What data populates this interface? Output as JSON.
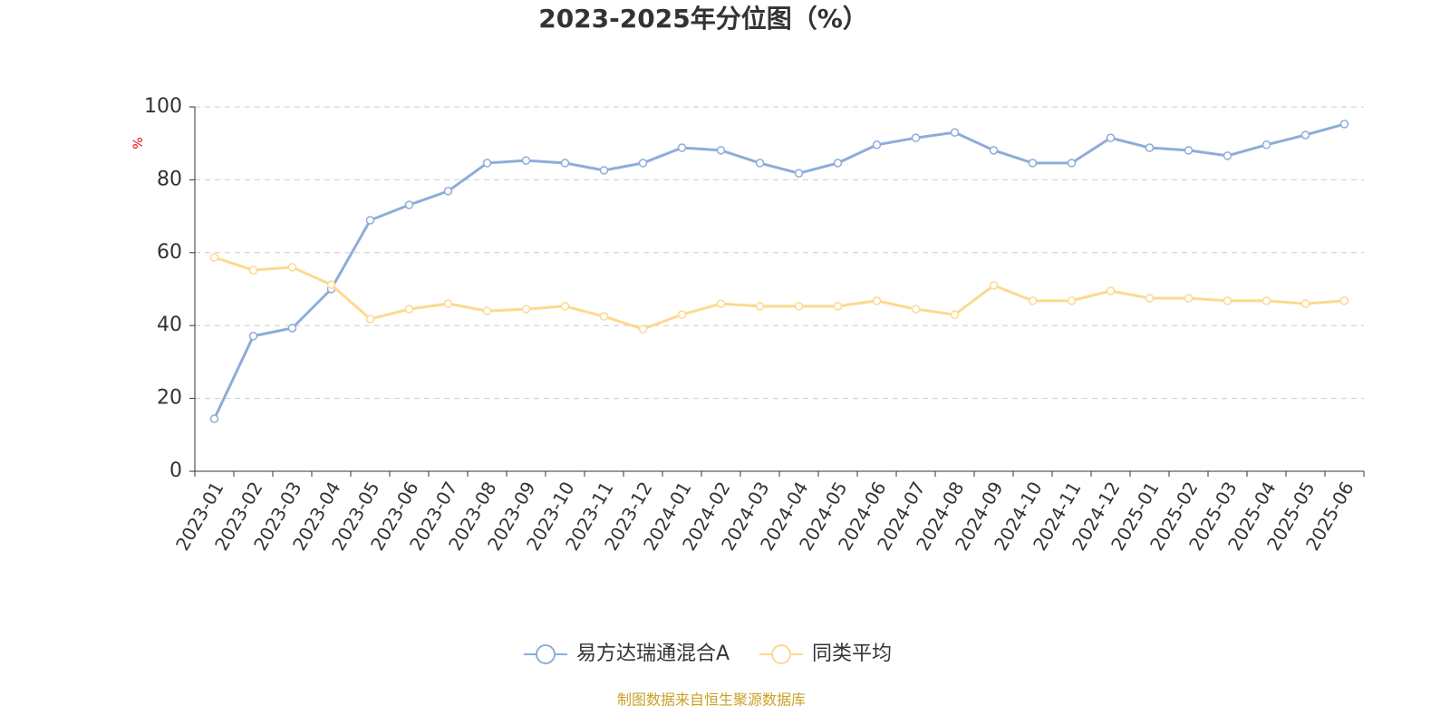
{
  "chart_data": {
    "type": "line",
    "title": "2023-2025年分位图（%）",
    "y_label": "%",
    "categories": [
      "2023-01",
      "2023-02",
      "2023-03",
      "2023-04",
      "2023-05",
      "2023-06",
      "2023-07",
      "2023-08",
      "2023-09",
      "2023-10",
      "2023-11",
      "2023-12",
      "2024-01",
      "2024-02",
      "2024-03",
      "2024-04",
      "2024-05",
      "2024-06",
      "2024-07",
      "2024-08",
      "2024-09",
      "2024-10",
      "2024-11",
      "2024-12",
      "2025-01",
      "2025-02",
      "2025-03",
      "2025-04",
      "2025-05",
      "2025-06"
    ],
    "series": [
      {
        "name": "易方达瑞通混合A",
        "color": "#8eacd9",
        "values": [
          14.4,
          37.1,
          39.3,
          50,
          68.9,
          73.1,
          76.9,
          84.6,
          85.3,
          84.6,
          82.6,
          84.6,
          88.8,
          88.1,
          84.6,
          81.8,
          84.6,
          89.6,
          91.5,
          93,
          88.1,
          84.6,
          84.6,
          91.5,
          88.8,
          88.1,
          86.6,
          89.6,
          92.3,
          95.3
        ]
      },
      {
        "name": "同类平均",
        "color": "#fdd98f",
        "values": [
          58.7,
          55.2,
          56,
          51.2,
          41.8,
          44.5,
          46,
          44,
          44.5,
          45.3,
          42.5,
          39,
          43,
          46,
          45.3,
          45.3,
          45.3,
          46.8,
          44.5,
          43,
          51,
          46.8,
          46.8,
          49.5,
          47.5,
          47.5,
          46.8,
          46.8,
          46,
          46.8
        ]
      }
    ],
    "ylim": [
      0,
      100
    ],
    "yticks": [
      0,
      20,
      40,
      60,
      80,
      100
    ],
    "grid": true,
    "legend": "bottom",
    "source": "制图数据来自恒生聚源数据库"
  }
}
